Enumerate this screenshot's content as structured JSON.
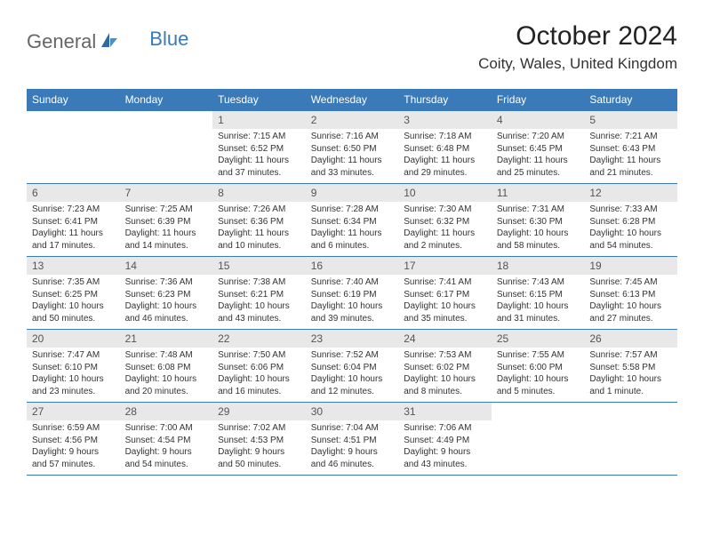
{
  "brand": {
    "part1": "General",
    "part2": "Blue"
  },
  "title": "October 2024",
  "location": "Coity, Wales, United Kingdom",
  "colors": {
    "accent": "#3a7ab8",
    "headerRowBg": "#e8e8e8",
    "text": "#333333",
    "bg": "#ffffff"
  },
  "dayHeaders": [
    "Sunday",
    "Monday",
    "Tuesday",
    "Wednesday",
    "Thursday",
    "Friday",
    "Saturday"
  ],
  "weeks": [
    [
      {
        "day": "",
        "sunrise": "",
        "sunset": "",
        "daylight": ""
      },
      {
        "day": "",
        "sunrise": "",
        "sunset": "",
        "daylight": ""
      },
      {
        "day": "1",
        "sunrise": "Sunrise: 7:15 AM",
        "sunset": "Sunset: 6:52 PM",
        "daylight": "Daylight: 11 hours and 37 minutes."
      },
      {
        "day": "2",
        "sunrise": "Sunrise: 7:16 AM",
        "sunset": "Sunset: 6:50 PM",
        "daylight": "Daylight: 11 hours and 33 minutes."
      },
      {
        "day": "3",
        "sunrise": "Sunrise: 7:18 AM",
        "sunset": "Sunset: 6:48 PM",
        "daylight": "Daylight: 11 hours and 29 minutes."
      },
      {
        "day": "4",
        "sunrise": "Sunrise: 7:20 AM",
        "sunset": "Sunset: 6:45 PM",
        "daylight": "Daylight: 11 hours and 25 minutes."
      },
      {
        "day": "5",
        "sunrise": "Sunrise: 7:21 AM",
        "sunset": "Sunset: 6:43 PM",
        "daylight": "Daylight: 11 hours and 21 minutes."
      }
    ],
    [
      {
        "day": "6",
        "sunrise": "Sunrise: 7:23 AM",
        "sunset": "Sunset: 6:41 PM",
        "daylight": "Daylight: 11 hours and 17 minutes."
      },
      {
        "day": "7",
        "sunrise": "Sunrise: 7:25 AM",
        "sunset": "Sunset: 6:39 PM",
        "daylight": "Daylight: 11 hours and 14 minutes."
      },
      {
        "day": "8",
        "sunrise": "Sunrise: 7:26 AM",
        "sunset": "Sunset: 6:36 PM",
        "daylight": "Daylight: 11 hours and 10 minutes."
      },
      {
        "day": "9",
        "sunrise": "Sunrise: 7:28 AM",
        "sunset": "Sunset: 6:34 PM",
        "daylight": "Daylight: 11 hours and 6 minutes."
      },
      {
        "day": "10",
        "sunrise": "Sunrise: 7:30 AM",
        "sunset": "Sunset: 6:32 PM",
        "daylight": "Daylight: 11 hours and 2 minutes."
      },
      {
        "day": "11",
        "sunrise": "Sunrise: 7:31 AM",
        "sunset": "Sunset: 6:30 PM",
        "daylight": "Daylight: 10 hours and 58 minutes."
      },
      {
        "day": "12",
        "sunrise": "Sunrise: 7:33 AM",
        "sunset": "Sunset: 6:28 PM",
        "daylight": "Daylight: 10 hours and 54 minutes."
      }
    ],
    [
      {
        "day": "13",
        "sunrise": "Sunrise: 7:35 AM",
        "sunset": "Sunset: 6:25 PM",
        "daylight": "Daylight: 10 hours and 50 minutes."
      },
      {
        "day": "14",
        "sunrise": "Sunrise: 7:36 AM",
        "sunset": "Sunset: 6:23 PM",
        "daylight": "Daylight: 10 hours and 46 minutes."
      },
      {
        "day": "15",
        "sunrise": "Sunrise: 7:38 AM",
        "sunset": "Sunset: 6:21 PM",
        "daylight": "Daylight: 10 hours and 43 minutes."
      },
      {
        "day": "16",
        "sunrise": "Sunrise: 7:40 AM",
        "sunset": "Sunset: 6:19 PM",
        "daylight": "Daylight: 10 hours and 39 minutes."
      },
      {
        "day": "17",
        "sunrise": "Sunrise: 7:41 AM",
        "sunset": "Sunset: 6:17 PM",
        "daylight": "Daylight: 10 hours and 35 minutes."
      },
      {
        "day": "18",
        "sunrise": "Sunrise: 7:43 AM",
        "sunset": "Sunset: 6:15 PM",
        "daylight": "Daylight: 10 hours and 31 minutes."
      },
      {
        "day": "19",
        "sunrise": "Sunrise: 7:45 AM",
        "sunset": "Sunset: 6:13 PM",
        "daylight": "Daylight: 10 hours and 27 minutes."
      }
    ],
    [
      {
        "day": "20",
        "sunrise": "Sunrise: 7:47 AM",
        "sunset": "Sunset: 6:10 PM",
        "daylight": "Daylight: 10 hours and 23 minutes."
      },
      {
        "day": "21",
        "sunrise": "Sunrise: 7:48 AM",
        "sunset": "Sunset: 6:08 PM",
        "daylight": "Daylight: 10 hours and 20 minutes."
      },
      {
        "day": "22",
        "sunrise": "Sunrise: 7:50 AM",
        "sunset": "Sunset: 6:06 PM",
        "daylight": "Daylight: 10 hours and 16 minutes."
      },
      {
        "day": "23",
        "sunrise": "Sunrise: 7:52 AM",
        "sunset": "Sunset: 6:04 PM",
        "daylight": "Daylight: 10 hours and 12 minutes."
      },
      {
        "day": "24",
        "sunrise": "Sunrise: 7:53 AM",
        "sunset": "Sunset: 6:02 PM",
        "daylight": "Daylight: 10 hours and 8 minutes."
      },
      {
        "day": "25",
        "sunrise": "Sunrise: 7:55 AM",
        "sunset": "Sunset: 6:00 PM",
        "daylight": "Daylight: 10 hours and 5 minutes."
      },
      {
        "day": "26",
        "sunrise": "Sunrise: 7:57 AM",
        "sunset": "Sunset: 5:58 PM",
        "daylight": "Daylight: 10 hours and 1 minute."
      }
    ],
    [
      {
        "day": "27",
        "sunrise": "Sunrise: 6:59 AM",
        "sunset": "Sunset: 4:56 PM",
        "daylight": "Daylight: 9 hours and 57 minutes."
      },
      {
        "day": "28",
        "sunrise": "Sunrise: 7:00 AM",
        "sunset": "Sunset: 4:54 PM",
        "daylight": "Daylight: 9 hours and 54 minutes."
      },
      {
        "day": "29",
        "sunrise": "Sunrise: 7:02 AM",
        "sunset": "Sunset: 4:53 PM",
        "daylight": "Daylight: 9 hours and 50 minutes."
      },
      {
        "day": "30",
        "sunrise": "Sunrise: 7:04 AM",
        "sunset": "Sunset: 4:51 PM",
        "daylight": "Daylight: 9 hours and 46 minutes."
      },
      {
        "day": "31",
        "sunrise": "Sunrise: 7:06 AM",
        "sunset": "Sunset: 4:49 PM",
        "daylight": "Daylight: 9 hours and 43 minutes."
      },
      {
        "day": "",
        "sunrise": "",
        "sunset": "",
        "daylight": ""
      },
      {
        "day": "",
        "sunrise": "",
        "sunset": "",
        "daylight": ""
      }
    ]
  ]
}
